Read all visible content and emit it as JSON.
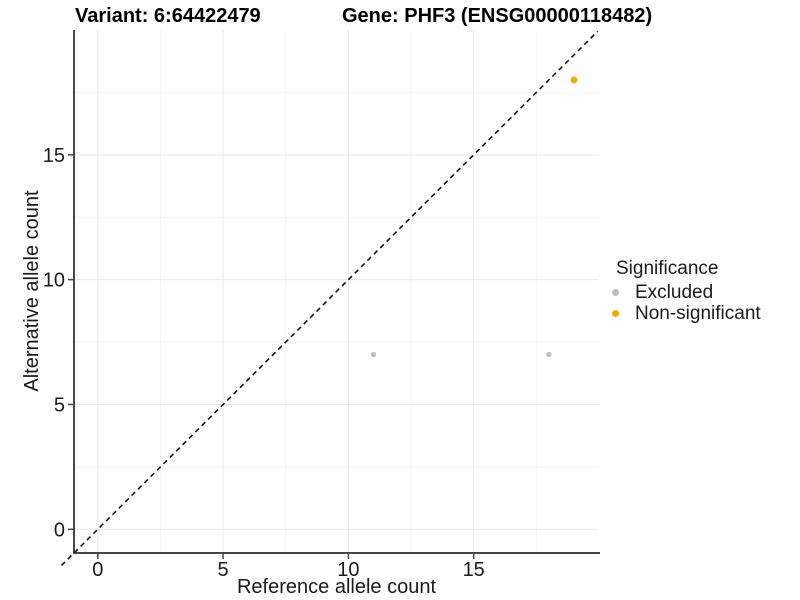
{
  "header": {
    "title_left": "Variant: 6:64422479",
    "title_right": "Gene: PHF3 (ENSG00000118482)"
  },
  "axes": {
    "xlabel": "Reference allele count",
    "ylabel": "Alternative allele count"
  },
  "legend": {
    "title": "Significance",
    "items": [
      {
        "label": "Excluded",
        "color": "#BEBEBE"
      },
      {
        "label": "Non-significant",
        "color": "#FFA500"
      }
    ]
  },
  "colors": {
    "excluded": "#BEBEBE",
    "non_significant": "#FFA500",
    "grid_major": "#E9E9E9",
    "grid_minor": "#F4F4F4",
    "axis_line": "#474747",
    "tick_label": "#1A1A1A",
    "reference_line": "#111111"
  },
  "chart_data": {
    "type": "scatter",
    "title": "Variant: 6:64422479 / Gene: PHF3 (ENSG00000118482)",
    "xlabel": "Reference allele count",
    "ylabel": "Alternative allele count",
    "xlim": [
      -0.95,
      20.0
    ],
    "ylim": [
      -0.95,
      20.0
    ],
    "x_ticks": [
      0,
      5,
      10,
      15
    ],
    "y_ticks": [
      0,
      5,
      10,
      15
    ],
    "x_minor_ticks": [
      2.5,
      7.5,
      12.5,
      17.5
    ],
    "y_minor_ticks": [
      2.5,
      7.5,
      12.5,
      17.5
    ],
    "grid": true,
    "legend_position": "right",
    "legend_title": "Significance",
    "reference_line": {
      "kind": "identity",
      "style": "dashed",
      "from": -1.45,
      "to": 19.95
    },
    "series": [
      {
        "name": "Excluded",
        "color": "#BEBEBE",
        "marker_radius": 2.6,
        "points": [
          {
            "x": 11,
            "y": 7
          },
          {
            "x": 18,
            "y": 7
          }
        ]
      },
      {
        "name": "Non-significant",
        "color": "#FFA500",
        "marker_radius": 3.4,
        "points": [
          {
            "x": 19,
            "y": 18
          }
        ]
      }
    ]
  }
}
